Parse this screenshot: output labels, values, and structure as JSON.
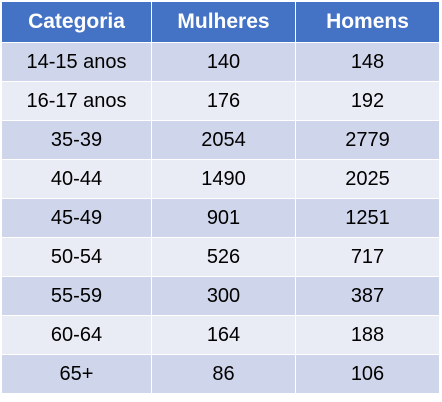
{
  "table": {
    "headers": [
      "Categoria",
      "Mulheres",
      "Homens"
    ],
    "rows": [
      [
        "14-15 anos",
        "140",
        "148"
      ],
      [
        "16-17 anos",
        "176",
        "192"
      ],
      [
        "35-39",
        "2054",
        "2779"
      ],
      [
        "40-44",
        "1490",
        "2025"
      ],
      [
        "45-49",
        "901",
        "1251"
      ],
      [
        "50-54",
        "526",
        "717"
      ],
      [
        "55-59",
        "300",
        "387"
      ],
      [
        "60-64",
        "164",
        "188"
      ],
      [
        "65+",
        "86",
        "106"
      ]
    ]
  },
  "colors": {
    "header_bg": "#4472c4",
    "header_text": "#ffffff",
    "row_band_dark": "#cfd5ea",
    "row_band_light": "#e9ebf5"
  }
}
